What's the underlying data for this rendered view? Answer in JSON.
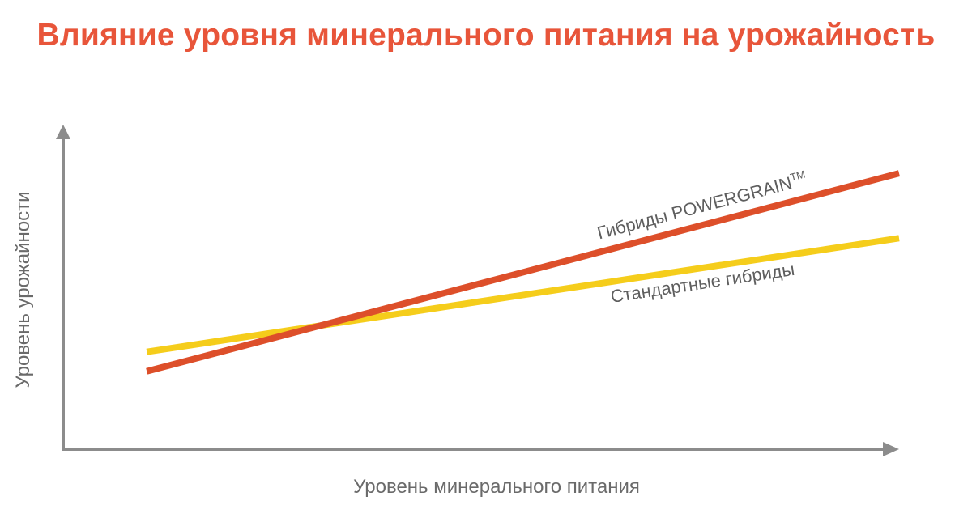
{
  "title": "Влияние уровня минерального питания на урожайность",
  "colors": {
    "title": "#e8553a",
    "axis": "#8c8c8c",
    "axis_text": "#6a6a6a",
    "label_text": "#5e5e5e"
  },
  "chart_data": {
    "type": "line",
    "title": "Влияние уровня минерального питания на урожайность",
    "xlabel": "Уровень минерального питания",
    "ylabel": "Уровень урожайности",
    "x_ticks": [],
    "y_ticks": [],
    "xlim": [
      0,
      10
    ],
    "ylim": [
      0,
      10
    ],
    "grid": false,
    "legend": "inline labels on series",
    "series": [
      {
        "name": "Гибриды POWERGRAIN",
        "name_suffix": "TM",
        "color": "#dd4f2a",
        "x": [
          1,
          10
        ],
        "y": [
          2.4,
          8.5
        ]
      },
      {
        "name": "Стандартные гибриды",
        "color": "#f5cd1b",
        "x": [
          1,
          10
        ],
        "y": [
          3.0,
          6.5
        ]
      }
    ]
  }
}
